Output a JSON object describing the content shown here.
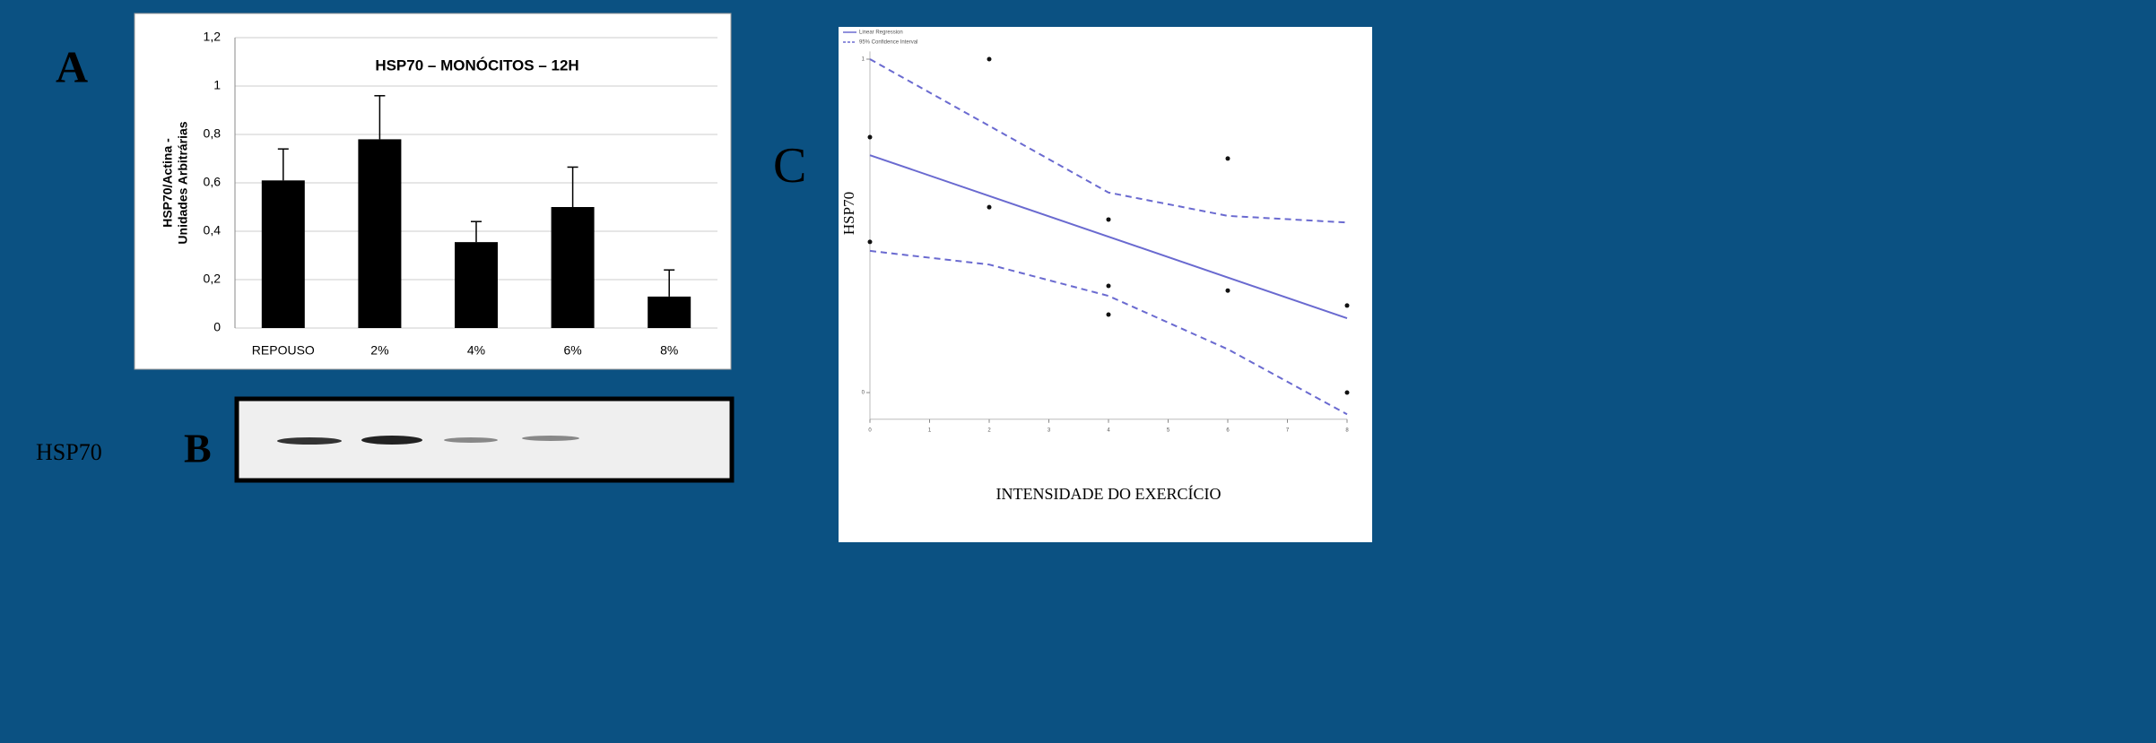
{
  "chart_data": [
    {
      "type": "bar",
      "panel_label": "A",
      "title": "HSP70 – MONÓCITOS – 12H",
      "y_label": [
        "HSP70/Actina -",
        "Unidades Arbitrárias"
      ],
      "categories": [
        "REPOUSO",
        "2%",
        "4%",
        "6%",
        "8%"
      ],
      "values": [
        0.61,
        0.78,
        0.355,
        0.5,
        0.13
      ],
      "errors": [
        0.13,
        0.18,
        0.085,
        0.165,
        0.11
      ],
      "color": "#000000",
      "ylim": [
        0,
        1.2
      ],
      "yticks": [
        0,
        {
          "value": 0.2,
          "label": "0,2"
        },
        {
          "value": 0.4,
          "label": "0,4"
        },
        {
          "value": 0.6,
          "label": "0,6"
        },
        {
          "value": 0.8,
          "label": "0,8"
        },
        1,
        {
          "value": 1.2,
          "label": "1,2"
        }
      ],
      "grid": true
    },
    {
      "type": "scatter",
      "panel_label": "C",
      "x_label": "INTENSIDADE DO EXERCÍCIO",
      "y_label": "HSP70",
      "x": [
        0,
        0,
        2,
        2,
        4,
        4,
        4,
        6,
        6,
        8,
        8
      ],
      "values": [
        0.766,
        0.452,
        1.0,
        0.556,
        0.519,
        0.32,
        0.234,
        0.702,
        0.306,
        0.261,
        0
      ],
      "color": "#111111",
      "series": [
        {
          "name": "Linear Regression",
          "color": "#6a6ad0",
          "x": [
            0,
            8
          ],
          "values": [
            0.712,
            0.223
          ]
        },
        {
          "name": "95% Confidence Interval",
          "color": "#6a6ad0",
          "x": [
            0,
            2,
            4,
            6,
            8
          ],
          "upper": [
            1.0,
            0.8,
            0.6,
            0.53,
            0.51
          ],
          "lower": [
            0.425,
            0.384,
            0.29,
            0.13,
            -0.065
          ]
        }
      ],
      "xlim": [
        0,
        8
      ],
      "ylim": [
        -0.08,
        1.05
      ],
      "xticks": [
        0,
        1,
        2,
        3,
        4,
        5,
        6,
        7,
        8
      ],
      "yticks": [
        0,
        1
      ],
      "legend": "top-left"
    }
  ],
  "blot": {
    "label": "B",
    "row_label": "HSP70"
  }
}
